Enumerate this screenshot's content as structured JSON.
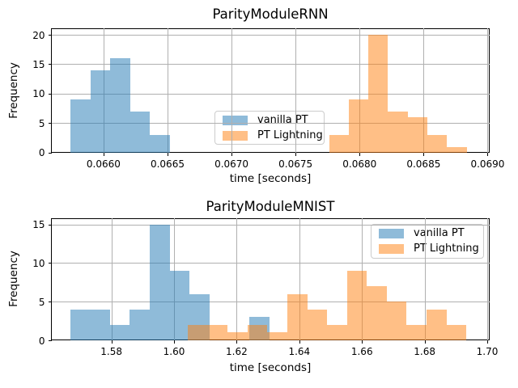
{
  "colors": {
    "vanilla_pt": "#1f77b4",
    "pt_lightning": "#ff7f0e",
    "fill_alpha": 0.5,
    "grid": "#b0b0b0",
    "spine": "#000000",
    "legend_border": "#cccccc",
    "background": "#ffffff"
  },
  "chart_data": [
    {
      "type": "histogram",
      "title": "ParityModuleRNN",
      "xlabel": "time [seconds]",
      "ylabel": "Frequency",
      "xlim": [
        0.065593,
        0.069013
      ],
      "ylim": [
        0,
        21.1
      ],
      "xticks": [
        0.066,
        0.0665,
        0.067,
        0.0675,
        0.068,
        0.0685,
        0.069
      ],
      "xtick_labels": [
        "0.0660",
        "0.0665",
        "0.0670",
        "0.0675",
        "0.0680",
        "0.0685",
        "0.0690"
      ],
      "yticks": [
        0,
        5,
        10,
        15,
        20
      ],
      "ytick_labels": [
        "0",
        "5",
        "10",
        "15",
        "20"
      ],
      "grid": true,
      "legend_position": "center",
      "series": [
        {
          "name": "vanilla PT",
          "color": "#1f77b4",
          "bin_start": 0.065742,
          "bin_width": 0.000155,
          "counts": [
            9,
            14,
            16,
            7,
            3
          ]
        },
        {
          "name": "PT Lightning",
          "color": "#ff7f0e",
          "bin_start": 0.067762,
          "bin_width": 0.0001535,
          "counts": [
            3,
            9,
            20,
            7,
            6,
            3,
            1
          ]
        }
      ]
    },
    {
      "type": "histogram",
      "title": "ParityModuleMNIST",
      "xlabel": "time [seconds]",
      "ylabel": "Frequency",
      "xlim": [
        1.56085,
        1.70064
      ],
      "ylim": [
        0,
        15.8
      ],
      "xticks": [
        1.58,
        1.6,
        1.62,
        1.64,
        1.66,
        1.68,
        1.7
      ],
      "xtick_labels": [
        "1.58",
        "1.60",
        "1.62",
        "1.64",
        "1.66",
        "1.68",
        "1.70"
      ],
      "yticks": [
        0,
        5,
        10,
        15
      ],
      "ytick_labels": [
        "0",
        "5",
        "10",
        "15"
      ],
      "grid": true,
      "legend_position": "upper right",
      "series": [
        {
          "name": "vanilla PT",
          "color": "#1f77b4",
          "bin_start": 1.5668,
          "bin_width": 0.006358,
          "counts": [
            4,
            4,
            2,
            4,
            15,
            9,
            6,
            0,
            0,
            3
          ]
        },
        {
          "name": "PT Lightning",
          "color": "#ff7f0e",
          "bin_start": 1.6044,
          "bin_width": 0.006353,
          "counts": [
            2,
            2,
            1,
            2,
            1,
            6,
            4,
            2,
            9,
            7,
            5,
            2,
            4,
            2
          ]
        }
      ]
    }
  ]
}
